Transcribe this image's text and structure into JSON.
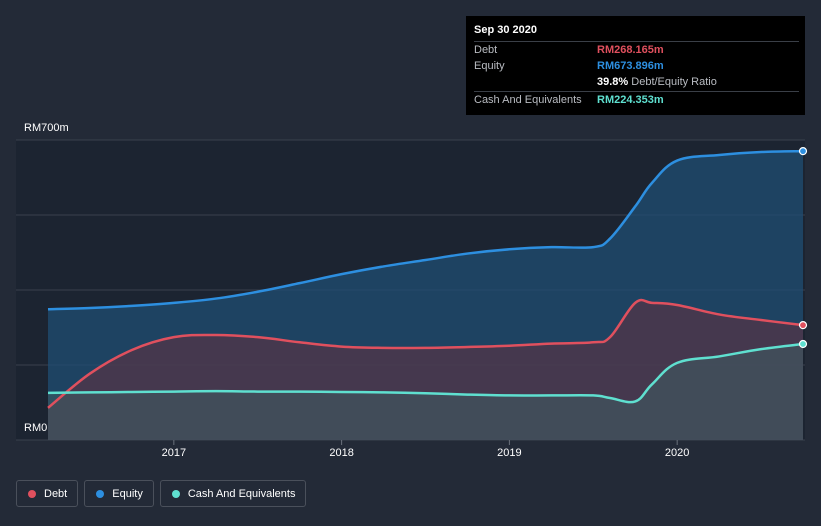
{
  "chart_data": {
    "type": "area",
    "ylim": [
      0,
      700
    ],
    "y_axis_labels": {
      "top": "RM700m",
      "bottom": "RM0"
    },
    "x_range": [
      2016.25,
      2020.75
    ],
    "x_ticks": [
      {
        "value": 2017,
        "label": "2017"
      },
      {
        "value": 2018,
        "label": "2018"
      },
      {
        "value": 2019,
        "label": "2019"
      },
      {
        "value": 2020,
        "label": "2020"
      }
    ],
    "series": [
      {
        "name": "Equity",
        "color": "#2d8fe0",
        "x": [
          2016.25,
          2016.5,
          2016.75,
          2017.0,
          2017.25,
          2017.5,
          2017.75,
          2018.0,
          2018.25,
          2018.5,
          2018.75,
          2019.0,
          2019.25,
          2019.5,
          2019.6,
          2019.75,
          2019.85,
          2020.0,
          2020.25,
          2020.5,
          2020.75
        ],
        "values": [
          305,
          308,
          313,
          320,
          330,
          346,
          366,
          387,
          405,
          420,
          435,
          445,
          450,
          450,
          470,
          545,
          600,
          652,
          665,
          672,
          674
        ]
      },
      {
        "name": "Debt",
        "color": "#e0505e",
        "x": [
          2016.25,
          2016.5,
          2016.75,
          2017.0,
          2017.25,
          2017.5,
          2017.75,
          2018.0,
          2018.25,
          2018.5,
          2018.75,
          2019.0,
          2019.25,
          2019.5,
          2019.6,
          2019.75,
          2019.85,
          2020.0,
          2020.25,
          2020.5,
          2020.75
        ],
        "values": [
          75,
          155,
          210,
          240,
          245,
          240,
          228,
          218,
          215,
          215,
          217,
          220,
          225,
          228,
          240,
          320,
          320,
          315,
          293,
          280,
          268
        ]
      },
      {
        "name": "Cash And Equivalents",
        "color": "#5fe0d0",
        "x": [
          2016.25,
          2016.5,
          2016.75,
          2017.0,
          2017.25,
          2017.5,
          2017.75,
          2018.0,
          2018.25,
          2018.5,
          2018.75,
          2019.0,
          2019.25,
          2019.5,
          2019.6,
          2019.75,
          2019.85,
          2020.0,
          2020.25,
          2020.5,
          2020.75
        ],
        "values": [
          110,
          111,
          112,
          113,
          114,
          113,
          113,
          112,
          111,
          109,
          106,
          104,
          104,
          104,
          98,
          90,
          130,
          180,
          195,
          212,
          224
        ]
      }
    ]
  },
  "tooltip": {
    "date": "Sep 30 2020",
    "debt_label": "Debt",
    "debt_value": "RM268.165m",
    "equity_label": "Equity",
    "equity_value": "RM673.896m",
    "ratio_pct": "39.8%",
    "ratio_label": "Debt/Equity Ratio",
    "cash_label": "Cash And Equivalents",
    "cash_value": "RM224.353m"
  },
  "legend": [
    {
      "label": "Debt",
      "color": "#e0505e"
    },
    {
      "label": "Equity",
      "color": "#2d8fe0"
    },
    {
      "label": "Cash And Equivalents",
      "color": "#5fe0d0"
    }
  ]
}
